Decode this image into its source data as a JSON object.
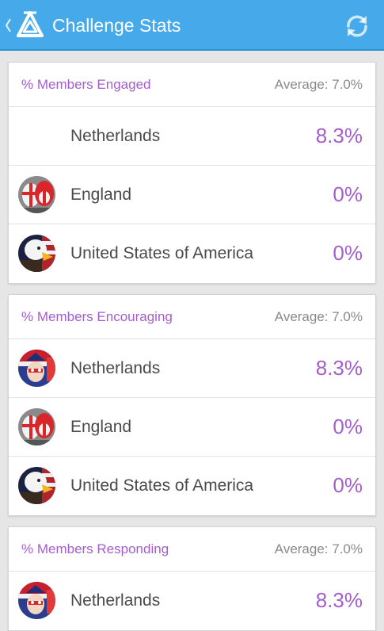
{
  "appbar": {
    "title": "Challenge Stats",
    "up_icon": "chevron-left-icon",
    "logo_icon": "triangle-logo-icon",
    "refresh_icon": "refresh-icon"
  },
  "colors": {
    "appbar": "#45a9ea",
    "accent": "#a45ecb",
    "background": "#e6e6e6"
  },
  "sections": [
    {
      "title": "% Members Engaged",
      "average": "Average: 7.0%",
      "rows": [
        {
          "country": "Netherlands",
          "value": "8.3%",
          "avatar": "none"
        },
        {
          "country": "England",
          "value": "0%",
          "avatar": "england-fans-avatar"
        },
        {
          "country": "United States of America",
          "value": "0%",
          "avatar": "usa-eagle-avatar"
        }
      ]
    },
    {
      "title": "% Members Encouraging",
      "average": "Average: 7.0%",
      "rows": [
        {
          "country": "Netherlands",
          "value": "8.3%",
          "avatar": "netherlands-fan-avatar"
        },
        {
          "country": "England",
          "value": "0%",
          "avatar": "england-fans-avatar"
        },
        {
          "country": "United States of America",
          "value": "0%",
          "avatar": "usa-eagle-avatar"
        }
      ]
    },
    {
      "title": "% Members Responding",
      "average": "Average: 7.0%",
      "rows": [
        {
          "country": "Netherlands",
          "value": "8.3%",
          "avatar": "netherlands-fan-avatar"
        }
      ]
    }
  ]
}
